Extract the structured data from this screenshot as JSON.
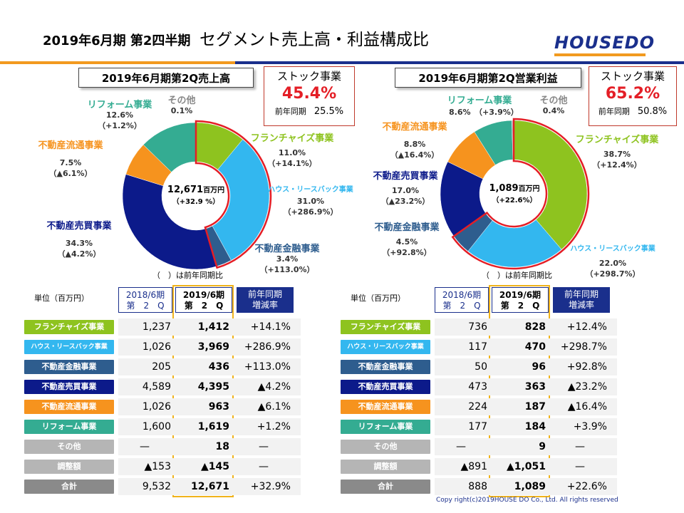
{
  "page": {
    "title_bold": "2019年6月期 第2四半期",
    "title_main": "セグメント売上高・利益構成比",
    "logo": "HOUSEDO",
    "note": "（　）は前年同期比",
    "unit": "単位（百万円）",
    "copyright": "Copy right(c)2019HOUSE DO Co., Ltd. All rights reserved"
  },
  "colors": {
    "franchise": "#8ec31f",
    "house_leaseback": "#33b7ef",
    "finance": "#2e5d8e",
    "trading": "#0c1a8a",
    "distribution": "#f6931e",
    "reform": "#34ac92",
    "other": "#b5b5b5",
    "total": "#8a8a8a",
    "accent": "#e41e26",
    "highlight": "#f0b31b"
  },
  "sales": {
    "box_title": "2019年6月期第2Q売上高",
    "stock_label": "ストック事業",
    "stock_value": "45.4%",
    "stock_prev_label": "前年同期",
    "stock_prev_value": "25.5%",
    "center_value": "12,671",
    "center_unit": "百万円",
    "center_change": "（+32.9 %）",
    "labels": {
      "franchise": {
        "name": "フランチャイズ事業",
        "pct": "11.0%",
        "chg": "（+14.1%）"
      },
      "house": {
        "name": "ハウス・リースバック事業",
        "pct": "31.0%",
        "chg": "（+286.9%）"
      },
      "finance": {
        "name": "不動産金融事業",
        "pct": "3.4%",
        "chg": "（+113.0%）"
      },
      "trading": {
        "name": "不動産売買事業",
        "pct": "34.3%",
        "chg": "（▲4.2%）"
      },
      "distribution": {
        "name": "不動産流通事業",
        "pct": "7.5%",
        "chg": "（▲6.1%）"
      },
      "reform": {
        "name": "リフォーム事業",
        "pct": "12.6%",
        "chg": "（+1.2%）"
      },
      "other": {
        "name": "その他",
        "pct": "0.1%"
      }
    },
    "table": {
      "headers": [
        "2018/6期\n第　2　Q",
        "2019/6期\n第　2　Q",
        "前年同期\n増減率"
      ],
      "rows": [
        {
          "name": "フランチャイズ事業",
          "color": "#8ec31f",
          "prev": "1,237",
          "curr": "1,412",
          "chg": "+14.1%"
        },
        {
          "name": "ハウス・リースバック事業",
          "color": "#33b7ef",
          "prev": "1,026",
          "curr": "3,969",
          "chg": "+286.9%"
        },
        {
          "name": "不動産金融事業",
          "color": "#2e5d8e",
          "prev": "205",
          "curr": "436",
          "chg": "+113.0%"
        },
        {
          "name": "不動産売買事業",
          "color": "#0c1a8a",
          "prev": "4,589",
          "curr": "4,395",
          "chg": "▲4.2%"
        },
        {
          "name": "不動産流通事業",
          "color": "#f6931e",
          "prev": "1,026",
          "curr": "963",
          "chg": "▲6.1%"
        },
        {
          "name": "リフォーム事業",
          "color": "#34ac92",
          "prev": "1,600",
          "curr": "1,619",
          "chg": "+1.2%"
        },
        {
          "name": "その他",
          "color": "#b5b5b5",
          "prev": "—",
          "curr": "18",
          "chg": "—"
        },
        {
          "name": "調整額",
          "color": "#b5b5b5",
          "prev": "▲153",
          "curr": "▲145",
          "chg": "—"
        },
        {
          "name": "合計",
          "color": "#8a8a8a",
          "prev": "9,532",
          "curr": "12,671",
          "chg": "+32.9%"
        }
      ]
    }
  },
  "profit": {
    "box_title": "2019年6月期第2Q営業利益",
    "stock_label": "ストック事業",
    "stock_value": "65.2%",
    "stock_prev_label": "前年同期",
    "stock_prev_value": "50.8%",
    "center_value": "1,089",
    "center_unit": "百万円",
    "center_change": "（+22.6%）",
    "labels": {
      "franchise": {
        "name": "フランチャイズ事業",
        "pct": "38.7%",
        "chg": "（+12.4%）"
      },
      "house": {
        "name": "ハウス・リースバック事業",
        "pct": "22.0%",
        "chg": "（+298.7%）"
      },
      "finance": {
        "name": "不動産金融事業",
        "pct": "4.5%",
        "chg": "（+92.8%）"
      },
      "trading": {
        "name": "不動産売買事業",
        "pct": "17.0%",
        "chg": "（▲23.2%）"
      },
      "distribution": {
        "name": "不動産流通事業",
        "pct": "8.8%",
        "chg": "（▲16.4%）"
      },
      "reform": {
        "name": "リフォーム事業",
        "pct": "8.6%",
        "chg": "（+3.9%）"
      },
      "other": {
        "name": "その他",
        "pct": "0.4%"
      }
    },
    "table": {
      "headers": [
        "2018/6期\n第　2　Q",
        "2019/6期\n第　2　Q",
        "前年同期\n増減率"
      ],
      "rows": [
        {
          "name": "フランチャイズ事業",
          "color": "#8ec31f",
          "prev": "736",
          "curr": "828",
          "chg": "+12.4%"
        },
        {
          "name": "ハウス・リースバック事業",
          "color": "#33b7ef",
          "prev": "117",
          "curr": "470",
          "chg": "+298.7%"
        },
        {
          "name": "不動産金融事業",
          "color": "#2e5d8e",
          "prev": "50",
          "curr": "96",
          "chg": "+92.8%"
        },
        {
          "name": "不動産売買事業",
          "color": "#0c1a8a",
          "prev": "473",
          "curr": "363",
          "chg": "▲23.2%"
        },
        {
          "name": "不動産流通事業",
          "color": "#f6931e",
          "prev": "224",
          "curr": "187",
          "chg": "▲16.4%"
        },
        {
          "name": "リフォーム事業",
          "color": "#34ac92",
          "prev": "177",
          "curr": "184",
          "chg": "+3.9%"
        },
        {
          "name": "その他",
          "color": "#b5b5b5",
          "prev": "—",
          "curr": "9",
          "chg": "—"
        },
        {
          "name": "調整額",
          "color": "#b5b5b5",
          "prev": "▲891",
          "curr": "▲1,051",
          "chg": "—"
        },
        {
          "name": "合計",
          "color": "#8a8a8a",
          "prev": "888",
          "curr": "1,089",
          "chg": "+22.6%"
        }
      ]
    }
  },
  "chart_data": [
    {
      "type": "pie",
      "title": "2019年6月期第2Q売上高",
      "categories": [
        "フランチャイズ事業",
        "ハウス・リースバック事業",
        "不動産金融事業",
        "不動産売買事業",
        "不動産流通事業",
        "リフォーム事業",
        "その他"
      ],
      "values": [
        11.0,
        31.0,
        3.4,
        34.3,
        7.5,
        12.6,
        0.1
      ],
      "colors": [
        "#8ec31f",
        "#33b7ef",
        "#2e5d8e",
        "#0c1a8a",
        "#f6931e",
        "#34ac92",
        "#b5b5b5"
      ]
    },
    {
      "type": "pie",
      "title": "2019年6月期第2Q営業利益",
      "categories": [
        "フランチャイズ事業",
        "ハウス・リースバック事業",
        "不動産金融事業",
        "不動産売買事業",
        "不動産流通事業",
        "リフォーム事業",
        "その他"
      ],
      "values": [
        38.7,
        22.0,
        4.5,
        17.0,
        8.8,
        8.6,
        0.4
      ],
      "colors": [
        "#8ec31f",
        "#33b7ef",
        "#2e5d8e",
        "#0c1a8a",
        "#f6931e",
        "#34ac92",
        "#b5b5b5"
      ]
    }
  ]
}
